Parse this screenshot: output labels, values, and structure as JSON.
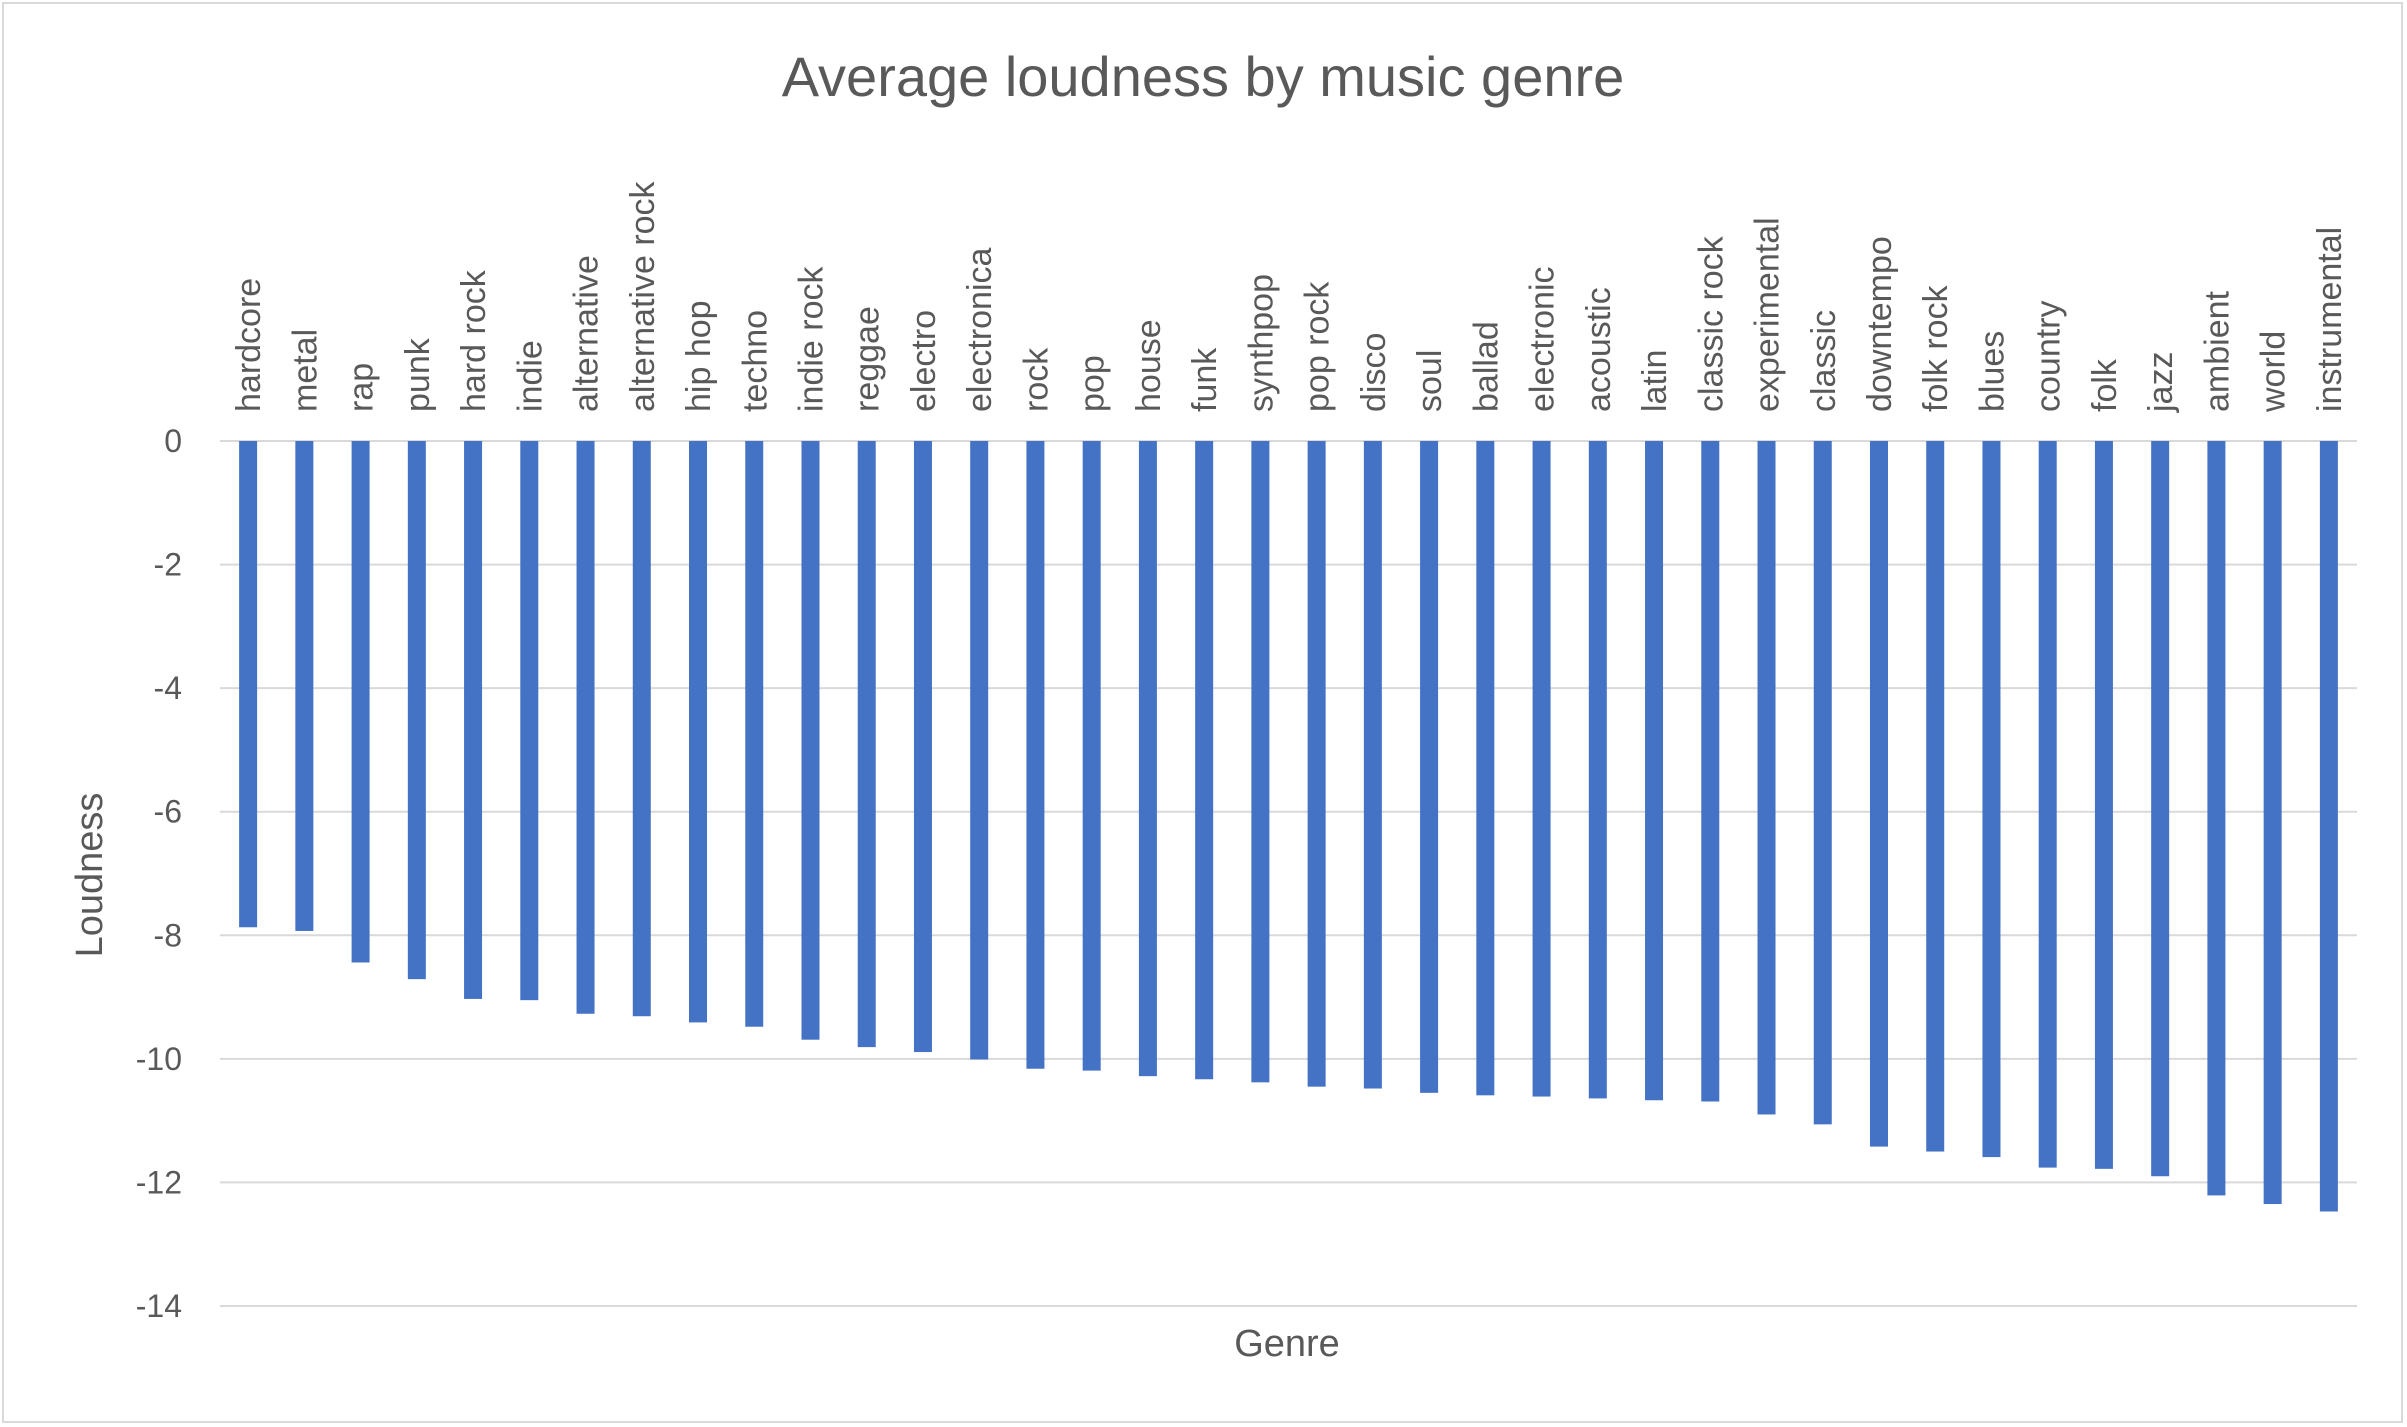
{
  "chart_data": {
    "type": "bar",
    "title": "Average loudness by music genre",
    "xlabel": "Genre",
    "ylabel": "Loudness",
    "ylim": [
      -14,
      0
    ],
    "yticks": [
      0,
      -2,
      -4,
      -6,
      -8,
      -10,
      -12,
      -14
    ],
    "grid": true,
    "legend": "none",
    "categories": [
      "hardcore",
      "metal",
      "rap",
      "punk",
      "hard rock",
      "indie",
      "alternative",
      "alternative rock",
      "hip hop",
      "techno",
      "indie rock",
      "reggae",
      "electro",
      "electronica",
      "rock",
      "pop",
      "house",
      "funk",
      "synthpop",
      "pop rock",
      "disco",
      "soul",
      "ballad",
      "electronic",
      "acoustic",
      "latin",
      "classic rock",
      "experimental",
      "classic",
      "downtempo",
      "folk rock",
      "blues",
      "country",
      "folk",
      "jazz",
      "ambient",
      "world",
      "instrumental"
    ],
    "values": [
      -7.87,
      -7.93,
      -8.44,
      -8.71,
      -9.03,
      -9.05,
      -9.27,
      -9.31,
      -9.41,
      -9.48,
      -9.69,
      -9.81,
      -9.89,
      -10.01,
      -10.16,
      -10.19,
      -10.28,
      -10.33,
      -10.38,
      -10.45,
      -10.48,
      -10.55,
      -10.59,
      -10.61,
      -10.64,
      -10.67,
      -10.69,
      -10.9,
      -11.06,
      -11.42,
      -11.5,
      -11.59,
      -11.76,
      -11.78,
      -11.9,
      -12.21,
      -12.35,
      -12.47
    ],
    "bar_color": "#4472c4"
  }
}
